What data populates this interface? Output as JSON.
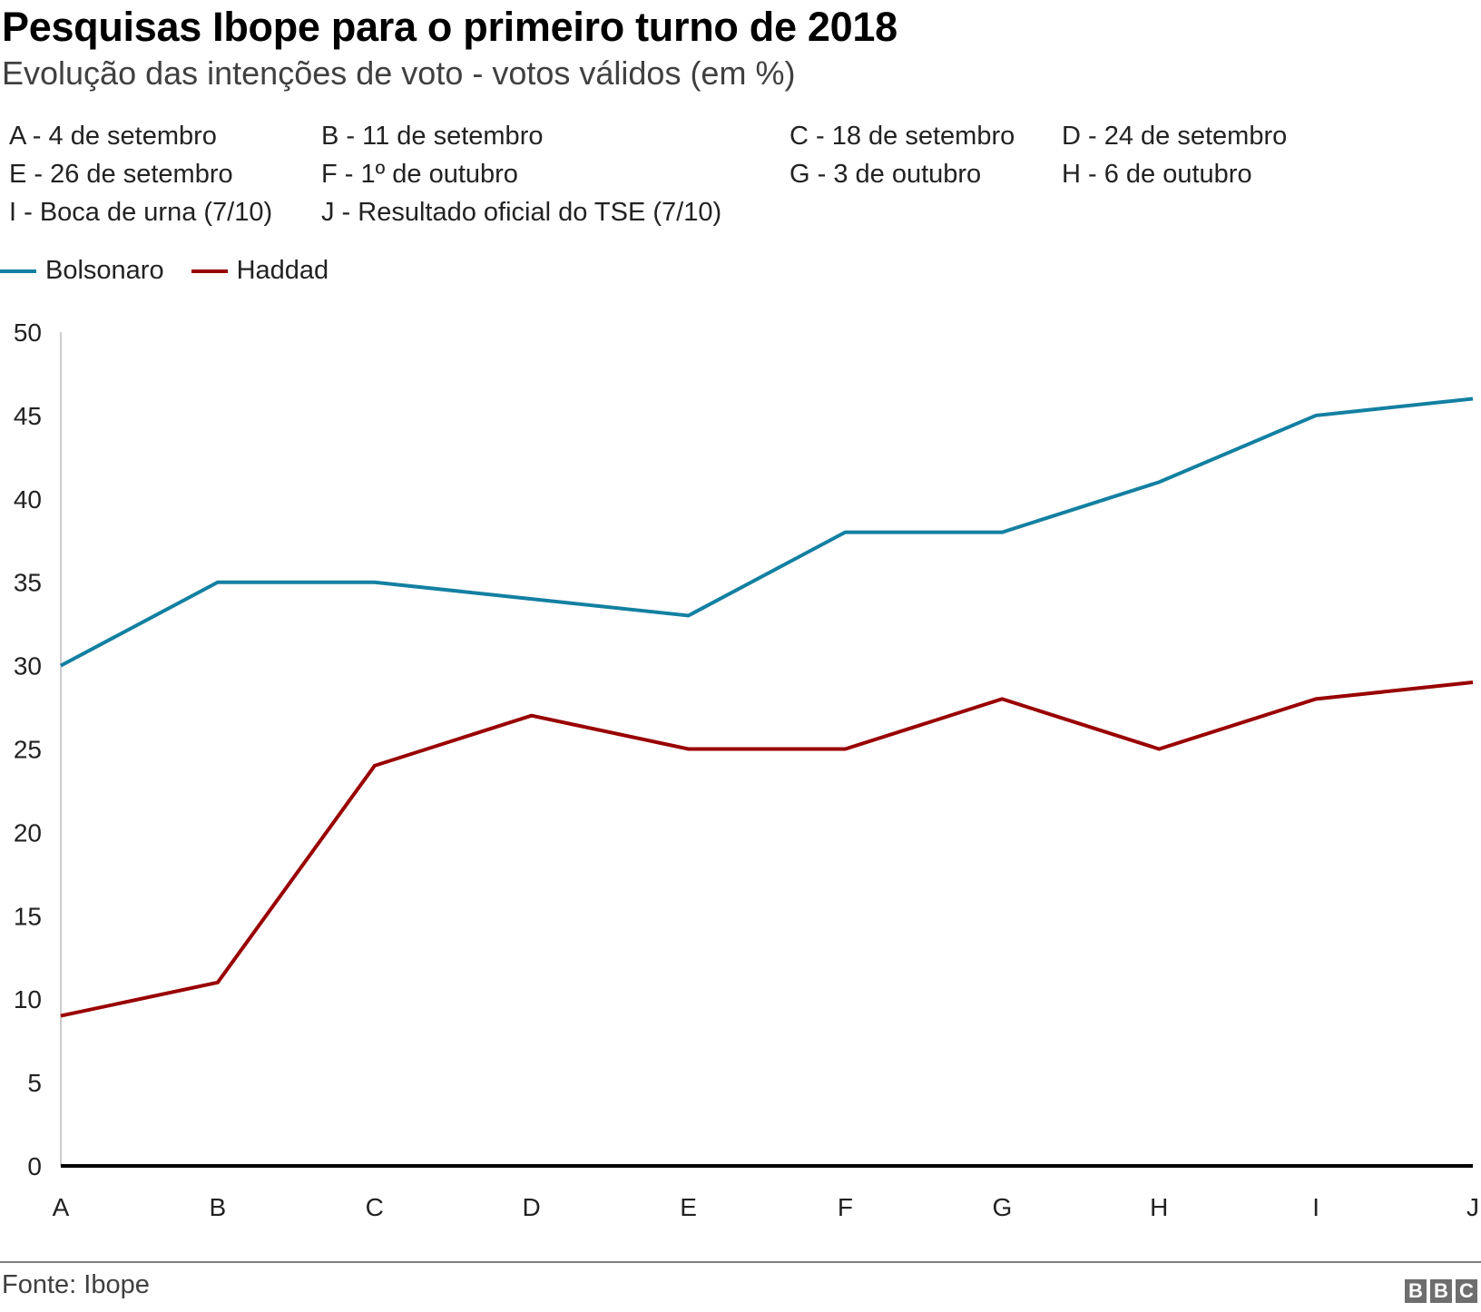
{
  "header": {
    "title": "Pesquisas Ibope para o primeiro turno de 2018",
    "subtitle": "Evolução das intenções de voto - votos válidos (em %)"
  },
  "key_labels": [
    "A - 4 de setembro",
    "B - 11 de setembro",
    "C - 18 de setembro",
    "D - 24 de setembro",
    "E - 26 de setembro",
    "F - 1º de outubro",
    "G - 3 de outubro",
    "H - 6 de outubro",
    "I - Boca de urna (7/10)",
    "J - Resultado oficial do TSE (7/10)"
  ],
  "footer": {
    "source": "Fonte: Ibope",
    "logo_letters": [
      "B",
      "B",
      "C"
    ]
  },
  "chart_data": {
    "type": "line",
    "title": "Pesquisas Ibope para o primeiro turno de 2018",
    "subtitle": "Evolução das intenções de voto - votos válidos (em %)",
    "xlabel": "",
    "ylabel": "",
    "x": [
      "A",
      "B",
      "C",
      "D",
      "E",
      "F",
      "G",
      "H",
      "I",
      "J"
    ],
    "ylim": [
      0,
      50
    ],
    "yticks": [
      0,
      5,
      10,
      15,
      20,
      25,
      30,
      35,
      40,
      45,
      50
    ],
    "grid": false,
    "legend_position": "top-left",
    "series": [
      {
        "name": "Bolsonaro",
        "color": "#1380a1",
        "values": [
          30,
          35,
          35,
          34,
          33,
          38,
          38,
          41,
          45,
          46
        ]
      },
      {
        "name": "Haddad",
        "color": "#990000",
        "values": [
          9,
          11,
          24,
          27,
          25,
          25,
          28,
          25,
          28,
          29
        ]
      }
    ]
  }
}
